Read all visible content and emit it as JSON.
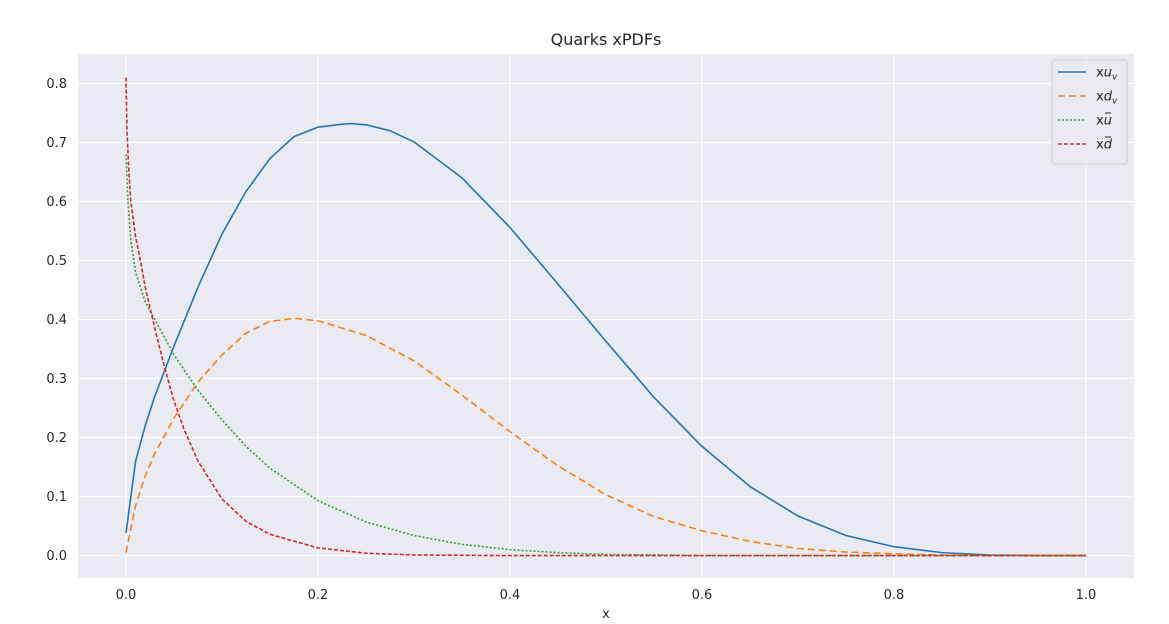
{
  "chart_data": {
    "type": "line",
    "title": "Quarks xPDFs",
    "xlabel": "x",
    "ylabel": "",
    "xlim": [
      -0.05,
      1.05
    ],
    "ylim": [
      -0.038,
      0.85
    ],
    "xticks": [
      0.0,
      0.2,
      0.4,
      0.6,
      0.8,
      1.0
    ],
    "xtick_labels": [
      "0.0",
      "0.2",
      "0.4",
      "0.6",
      "0.8",
      "1.0"
    ],
    "yticks": [
      0.0,
      0.1,
      0.2,
      0.3,
      0.4,
      0.5,
      0.6,
      0.7,
      0.8
    ],
    "ytick_labels": [
      "0.0",
      "0.1",
      "0.2",
      "0.3",
      "0.4",
      "0.5",
      "0.6",
      "0.7",
      "0.8"
    ],
    "grid": true,
    "legend_position": "top-right",
    "background": "#eaeaf2",
    "series": [
      {
        "name": "xu_v",
        "legend_prefix": "x",
        "legend_var": "u",
        "legend_sub": "v",
        "legend_bar": false,
        "color": "#1f77b4",
        "dash": "solid",
        "x": [
          0.0,
          0.01,
          0.02,
          0.03,
          0.05,
          0.075,
          0.1,
          0.125,
          0.15,
          0.175,
          0.2,
          0.225,
          0.235,
          0.25,
          0.275,
          0.3,
          0.35,
          0.4,
          0.45,
          0.5,
          0.55,
          0.6,
          0.65,
          0.7,
          0.75,
          0.8,
          0.85,
          0.9,
          0.95,
          1.0
        ],
        "y": [
          0.038,
          0.16,
          0.22,
          0.27,
          0.355,
          0.455,
          0.545,
          0.617,
          0.673,
          0.71,
          0.726,
          0.731,
          0.732,
          0.73,
          0.72,
          0.701,
          0.64,
          0.556,
          0.46,
          0.363,
          0.268,
          0.185,
          0.117,
          0.067,
          0.034,
          0.015,
          0.005,
          0.001,
          0.0,
          0.0
        ]
      },
      {
        "name": "xd_v",
        "legend_prefix": "x",
        "legend_var": "d",
        "legend_sub": "v",
        "legend_bar": false,
        "color": "#ff7f0e",
        "dash": "7,4",
        "x": [
          0.0,
          0.01,
          0.02,
          0.03,
          0.05,
          0.075,
          0.1,
          0.125,
          0.15,
          0.175,
          0.2,
          0.25,
          0.3,
          0.35,
          0.4,
          0.45,
          0.5,
          0.55,
          0.6,
          0.65,
          0.7,
          0.75,
          0.8,
          0.85,
          0.9,
          1.0
        ],
        "y": [
          0.005,
          0.085,
          0.135,
          0.173,
          0.233,
          0.294,
          0.34,
          0.377,
          0.397,
          0.402,
          0.398,
          0.373,
          0.33,
          0.272,
          0.21,
          0.152,
          0.103,
          0.066,
          0.042,
          0.024,
          0.012,
          0.006,
          0.003,
          0.001,
          0.0,
          0.0
        ]
      },
      {
        "name": "xū",
        "legend_prefix": "x",
        "legend_var": "u",
        "legend_sub": "",
        "legend_bar": true,
        "color": "#2ca02c",
        "dash": "2,2",
        "x": [
          0.0,
          0.002,
          0.005,
          0.01,
          0.02,
          0.03,
          0.05,
          0.075,
          0.1,
          0.125,
          0.15,
          0.2,
          0.25,
          0.3,
          0.35,
          0.4,
          0.45,
          0.5,
          0.6,
          0.8,
          1.0
        ],
        "y": [
          0.68,
          0.6,
          0.535,
          0.48,
          0.43,
          0.4,
          0.34,
          0.28,
          0.23,
          0.185,
          0.148,
          0.093,
          0.057,
          0.034,
          0.019,
          0.01,
          0.005,
          0.002,
          0.0,
          0.0,
          0.0
        ]
      },
      {
        "name": "xd̄",
        "legend_prefix": "x",
        "legend_var": "d",
        "legend_sub": "",
        "legend_bar": true,
        "color": "#d62728",
        "dash": "4,2",
        "x": [
          0.0,
          0.001,
          0.003,
          0.005,
          0.01,
          0.015,
          0.02,
          0.03,
          0.04,
          0.05,
          0.06,
          0.075,
          0.1,
          0.125,
          0.15,
          0.2,
          0.25,
          0.3,
          0.4,
          0.6,
          0.8,
          1.0
        ],
        "y": [
          0.81,
          0.72,
          0.65,
          0.6,
          0.54,
          0.5,
          0.455,
          0.385,
          0.32,
          0.262,
          0.216,
          0.16,
          0.096,
          0.058,
          0.036,
          0.013,
          0.004,
          0.001,
          0.0,
          0.0,
          0.0,
          0.0
        ]
      }
    ]
  }
}
